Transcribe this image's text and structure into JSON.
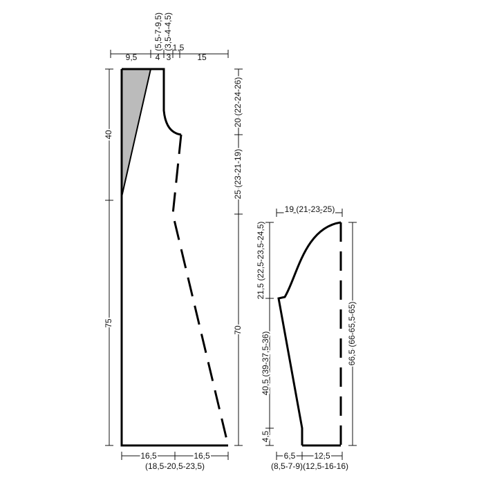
{
  "body": {
    "top": {
      "left": "9,5",
      "a": "4",
      "b": "3",
      "c": "1,5",
      "right": "15",
      "upper1": "(5,5-7-9,5)",
      "upper2": "(3,5-4-4,5)"
    },
    "left": {
      "upper": "40",
      "lower": "75"
    },
    "middle": {
      "top": "20 (22-24-26)",
      "mid": "25 (23-21-19)",
      "low": "70"
    },
    "bottom": {
      "left": "16,5",
      "right": "16,5",
      "sizes": "(18,5-20,5-23,5)"
    }
  },
  "sleeve": {
    "top": "19 (21-23-25)",
    "cap": "21,5 (22,5-23,5-24,5)",
    "side": "40,5 (39-37,5-36)",
    "cuff": "4,5",
    "length": "66,5 (66-65,5-65)",
    "bottom": {
      "left": "6,5",
      "right": "12,5",
      "sizes": "(8,5-7-9)(12,5-16-16)"
    }
  }
}
